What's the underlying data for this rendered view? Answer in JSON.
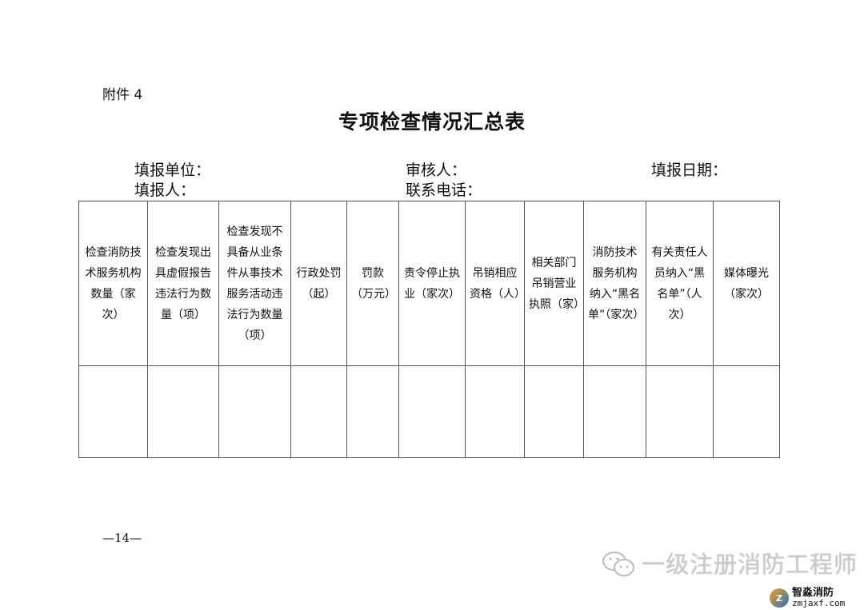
{
  "attachment_label": "附件 4",
  "title": "专项检查情况汇总表",
  "fields": {
    "unit": "填报单位：",
    "reviewer": "审核人：",
    "date": "填报日期：",
    "filler": "填报人：",
    "phone": "联系电话："
  },
  "table": {
    "headers": [
      "检查消防技术服务机构数量（家次）",
      "检查发现出具虚假报告违法行为数量（项）",
      "检查发现不具备从业条件从事技术服务活动违法行为数量（项）",
      "行政处罚（起）",
      "罚款（万元）",
      "责令停止执业（家次）",
      "吊销相应资格（人）",
      "相关部门吊销营业执照（家）",
      "消防技术服务机构纳入“黑名单”（家次）",
      "有关责任人员纳入“黑名单”（人次）",
      "媒体曝光（家次）"
    ],
    "rows": [
      [
        "",
        "",
        "",
        "",
        "",
        "",
        "",
        "",
        "",
        "",
        ""
      ]
    ]
  },
  "page_number": "—14—",
  "watermark": {
    "text": "一级注册消防工程师",
    "icon": "wechat-icon",
    "logo_cn": "智淼消防",
    "logo_en": "zmjaxf.com"
  }
}
